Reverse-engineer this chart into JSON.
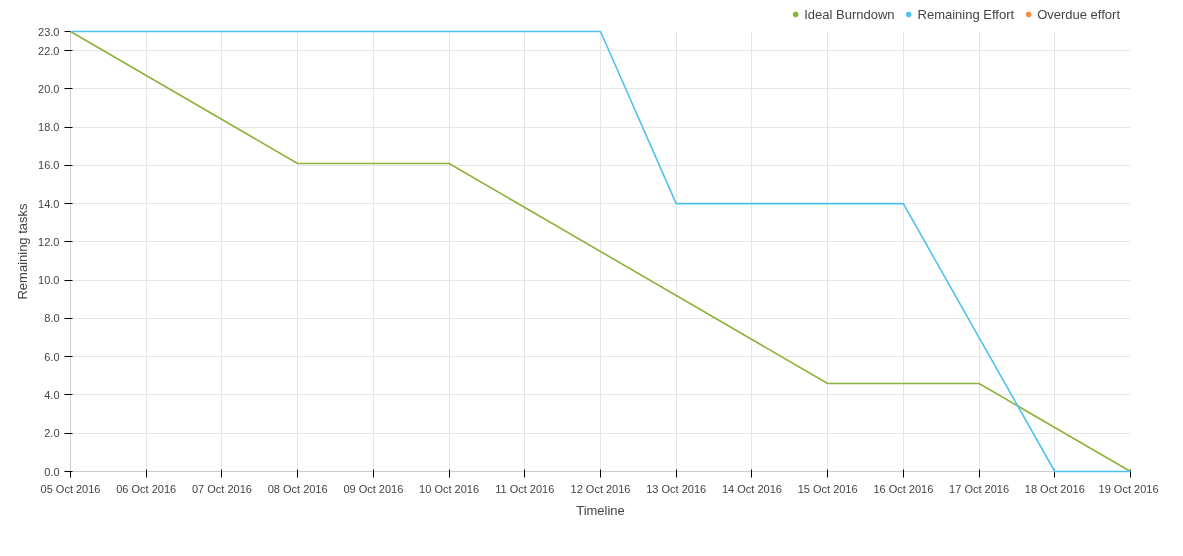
{
  "chart_data": {
    "type": "line",
    "xlabel": "Timeline",
    "ylabel": "Remaining tasks",
    "categories": [
      "05 Oct 2016",
      "06 Oct 2016",
      "07 Oct 2016",
      "08 Oct 2016",
      "09 Oct 2016",
      "10 Oct 2016",
      "11 Oct 2016",
      "12 Oct 2016",
      "13 Oct 2016",
      "14 Oct 2016",
      "15 Oct 2016",
      "16 Oct 2016",
      "17 Oct 2016",
      "18 Oct 2016",
      "19 Oct 2016"
    ],
    "series": [
      {
        "name": "Ideal Burndown",
        "color": "#8db33a",
        "values": [
          23,
          null,
          null,
          16.1,
          null,
          16.1,
          null,
          null,
          null,
          null,
          4.6,
          null,
          4.6,
          null,
          0
        ]
      },
      {
        "name": "Remaining Effort",
        "color": "#4fc1f0",
        "values": [
          23,
          23,
          23,
          23,
          23,
          23,
          23,
          23,
          14,
          14,
          14,
          14,
          7,
          0,
          0
        ]
      },
      {
        "name": "Overdue effort",
        "color": "#f58b3c",
        "values": [
          null,
          null,
          null,
          null,
          null,
          null,
          null,
          null,
          null,
          null,
          null,
          null,
          null,
          null,
          null
        ]
      }
    ],
    "ylim": [
      0,
      23
    ],
    "yticks": [
      {
        "value": 0,
        "label": "0.0"
      },
      {
        "value": 2,
        "label": "2.0"
      },
      {
        "value": 4,
        "label": "4.0"
      },
      {
        "value": 6,
        "label": "6.0"
      },
      {
        "value": 8,
        "label": "8.0"
      },
      {
        "value": 10,
        "label": "10.0"
      },
      {
        "value": 12,
        "label": "12.0"
      },
      {
        "value": 14,
        "label": "14.0"
      },
      {
        "value": 16,
        "label": "16.0"
      },
      {
        "value": 18,
        "label": "18.0"
      },
      {
        "value": 20,
        "label": "20.0"
      },
      {
        "value": 22,
        "label": "22.0"
      },
      {
        "value": 23,
        "label": "23.0"
      }
    ],
    "grid": true,
    "legend": "top right",
    "marker": "none",
    "line_style": "solid"
  }
}
